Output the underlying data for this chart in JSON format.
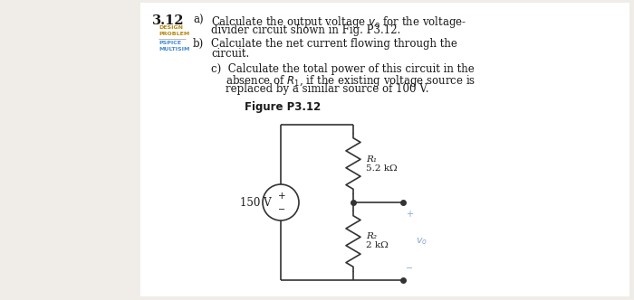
{
  "bg_color": "#f0ede8",
  "text_color": "#1a1a1a",
  "problem_number": "3.12",
  "label_color_design": "#b8860b",
  "label_color_pspice": "#4488cc",
  "label_color_multisim": "#4488cc",
  "figure_label": "Figure P3.12",
  "circuit": {
    "voltage_source": "150 V",
    "R1_label": "R₁",
    "R1_value": "5.2 kΩ",
    "R2_label": "R₂",
    "R2_value": "2 kΩ",
    "vo_label": "v₀",
    "plus_sign": "+",
    "minus_sign": "−"
  }
}
